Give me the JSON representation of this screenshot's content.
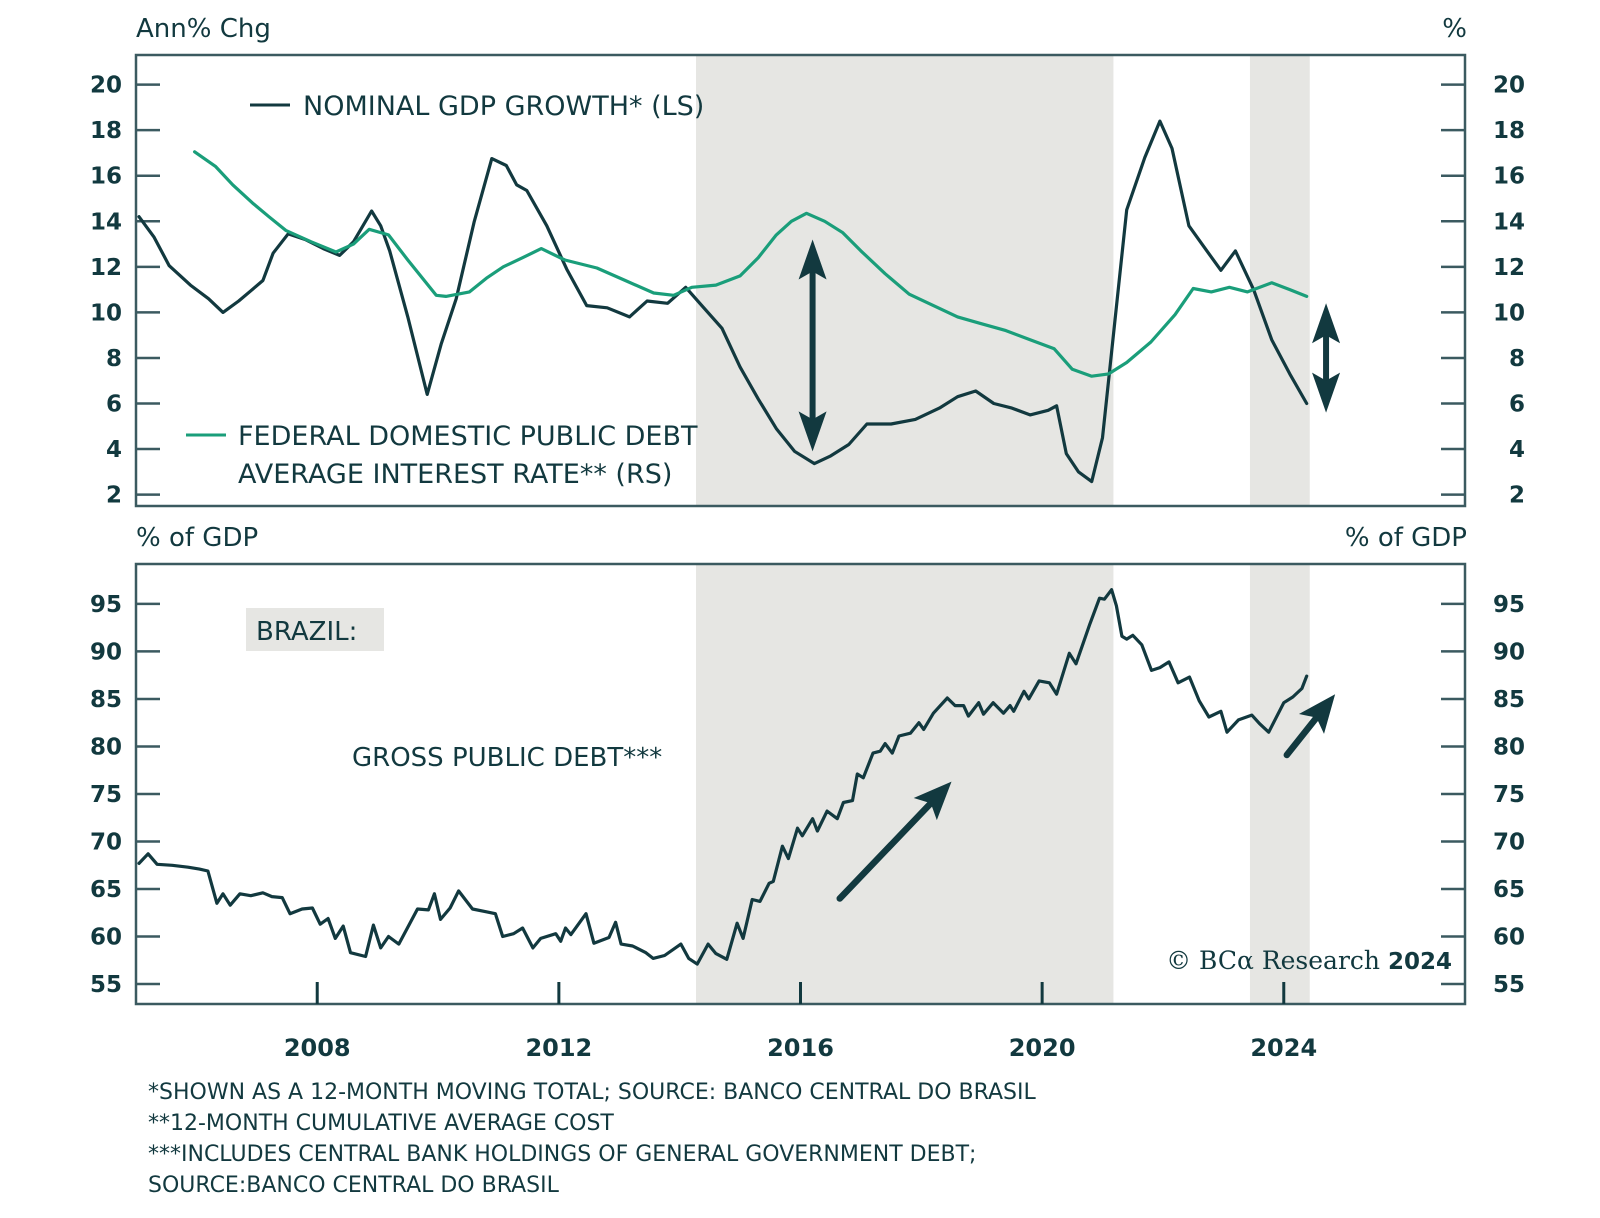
{
  "chart_data": [
    {
      "type": "line",
      "panel": "top",
      "title": "",
      "left_axis_label": "Ann% Chg",
      "right_axis_label": "%",
      "xlim": [
        2005.0,
        2027.0
      ],
      "ylim": [
        1.5,
        21.3
      ],
      "left_ticks": [
        2,
        4,
        6,
        8,
        10,
        12,
        14,
        16,
        18,
        20
      ],
      "right_ticks": [
        2,
        4,
        6,
        8,
        10,
        12,
        14,
        16,
        18,
        20
      ],
      "grid": false,
      "colors": {
        "nominal_gdp": "#12393f",
        "debt_rate": "#1a9e7a",
        "shade": "#e6e6e3",
        "frame": "#3b5a60"
      },
      "legend": [
        {
          "name": "NOMINAL GDP GROWTH* (LS)",
          "series": "nominal_gdp"
        },
        {
          "name": "FEDERAL DOMESTIC PUBLIC DEBT AVERAGE INTEREST RATE** (RS)",
          "series": "debt_rate",
          "lines": [
            "FEDERAL DOMESTIC PUBLIC DEBT",
            "AVERAGE INTEREST RATE** (RS)"
          ]
        }
      ],
      "shaded_periods": [
        [
          2014.27,
          2021.18
        ],
        [
          2023.44,
          2024.43
        ]
      ],
      "annotations": [
        {
          "type": "double-arrow",
          "x": 2016.2,
          "y_from": 13.2,
          "y_to": 3.9
        },
        {
          "type": "double-arrow",
          "x": 2024.7,
          "y_from": 10.4,
          "y_to": 5.6
        }
      ],
      "series": [
        {
          "name": "NOMINAL GDP GROWTH* (LS)",
          "axis": "left",
          "x": [
            2005.05,
            2005.3,
            2005.55,
            2005.9,
            2006.2,
            2006.44,
            2006.7,
            2006.9,
            2007.1,
            2007.27,
            2007.52,
            2007.8,
            2008.1,
            2008.37,
            2008.6,
            2008.9,
            2009.05,
            2009.2,
            2009.5,
            2009.82,
            2010.05,
            2010.3,
            2010.6,
            2010.89,
            2011.13,
            2011.3,
            2011.47,
            2011.8,
            2012.13,
            2012.46,
            2012.8,
            2013.17,
            2013.46,
            2013.8,
            2014.1,
            2014.4,
            2014.7,
            2015.0,
            2015.3,
            2015.6,
            2015.9,
            2016.23,
            2016.5,
            2016.8,
            2017.1,
            2017.5,
            2017.9,
            2018.3,
            2018.6,
            2018.9,
            2019.2,
            2019.5,
            2019.8,
            2020.1,
            2020.24,
            2020.4,
            2020.6,
            2020.82,
            2021.0,
            2021.2,
            2021.4,
            2021.7,
            2021.95,
            2022.15,
            2022.43,
            2022.7,
            2022.96,
            2023.2,
            2023.5,
            2023.8,
            2024.1,
            2024.38
          ],
          "values": [
            14.2,
            13.3,
            12.05,
            11.2,
            10.6,
            10.0,
            10.5,
            10.95,
            11.4,
            12.6,
            13.45,
            13.2,
            12.8,
            12.5,
            13.1,
            14.45,
            13.8,
            12.7,
            9.8,
            6.4,
            8.6,
            10.6,
            14.0,
            16.75,
            16.45,
            15.6,
            15.35,
            13.8,
            11.9,
            10.3,
            10.2,
            9.8,
            10.5,
            10.4,
            11.1,
            10.2,
            9.3,
            7.6,
            6.2,
            4.9,
            3.9,
            3.36,
            3.7,
            4.2,
            5.1,
            5.1,
            5.3,
            5.8,
            6.3,
            6.55,
            6.0,
            5.8,
            5.5,
            5.7,
            5.9,
            3.8,
            3.0,
            2.57,
            4.5,
            9.5,
            14.5,
            16.8,
            18.4,
            17.2,
            13.8,
            12.8,
            11.85,
            12.7,
            11.0,
            8.8,
            7.3,
            6.0
          ]
        },
        {
          "name": "FEDERAL DOMESTIC PUBLIC DEBT AVERAGE INTEREST RATE** (RS)",
          "axis": "right",
          "x": [
            2005.97,
            2006.32,
            2006.6,
            2006.93,
            2007.2,
            2007.48,
            2007.9,
            2008.31,
            2008.6,
            2008.86,
            2009.18,
            2009.5,
            2009.97,
            2010.13,
            2010.52,
            2010.8,
            2011.08,
            2011.4,
            2011.71,
            2012.1,
            2012.63,
            2013.1,
            2013.57,
            2013.9,
            2014.2,
            2014.6,
            2015.0,
            2015.3,
            2015.6,
            2015.85,
            2016.1,
            2016.4,
            2016.7,
            2017.0,
            2017.4,
            2017.8,
            2018.2,
            2018.6,
            2019.0,
            2019.4,
            2019.8,
            2020.2,
            2020.5,
            2020.82,
            2021.1,
            2021.4,
            2021.8,
            2022.2,
            2022.5,
            2022.8,
            2023.1,
            2023.4,
            2023.8,
            2024.1,
            2024.38
          ],
          "values": [
            17.05,
            16.4,
            15.6,
            14.8,
            14.2,
            13.6,
            13.1,
            12.65,
            13.0,
            13.65,
            13.4,
            12.3,
            10.75,
            10.7,
            10.9,
            11.5,
            12.0,
            12.4,
            12.8,
            12.3,
            11.95,
            11.4,
            10.85,
            10.75,
            11.1,
            11.2,
            11.6,
            12.4,
            13.4,
            14.0,
            14.35,
            14.0,
            13.5,
            12.7,
            11.7,
            10.8,
            10.3,
            9.8,
            9.5,
            9.2,
            8.8,
            8.4,
            7.5,
            7.2,
            7.3,
            7.8,
            8.7,
            9.9,
            11.05,
            10.9,
            11.1,
            10.9,
            11.3,
            11.0,
            10.7
          ]
        }
      ]
    },
    {
      "type": "line",
      "panel": "bottom",
      "title": "",
      "left_axis_label": "% of GDP",
      "right_axis_label": "% of GDP",
      "xlim": [
        2005.0,
        2027.0
      ],
      "ylim": [
        52.9,
        99.2
      ],
      "left_ticks": [
        55,
        60,
        65,
        70,
        75,
        80,
        85,
        90,
        95
      ],
      "right_ticks": [
        55,
        60,
        65,
        70,
        75,
        80,
        85,
        90,
        95
      ],
      "x_ticks": [
        2008,
        2012,
        2016,
        2020,
        2024
      ],
      "x_tick_labels": [
        "2008",
        "2012",
        "2016",
        "2020",
        "2024"
      ],
      "grid": false,
      "shaded_periods": [
        [
          2014.27,
          2021.18
        ],
        [
          2023.44,
          2024.43
        ]
      ],
      "panel_label": "BRAZIL:",
      "series_label": "GROSS PUBLIC DEBT***",
      "annotations": [
        {
          "type": "arrow-up-right",
          "from": [
            2016.65,
            64.0
          ],
          "to": [
            2018.5,
            76.3
          ]
        },
        {
          "type": "arrow-up-right",
          "from": [
            2024.05,
            79.1
          ],
          "to": [
            2024.85,
            85.5
          ]
        }
      ],
      "series": [
        {
          "name": "GROSS PUBLIC DEBT***",
          "axis": "left",
          "x": [
            2005.05,
            2005.2,
            2005.35,
            2005.6,
            2005.86,
            2006.05,
            2006.19,
            2006.34,
            2006.44,
            2006.56,
            2006.72,
            2006.9,
            2007.1,
            2007.25,
            2007.42,
            2007.55,
            2007.75,
            2007.92,
            2008.05,
            2008.18,
            2008.3,
            2008.43,
            2008.55,
            2008.8,
            2008.93,
            2009.05,
            2009.18,
            2009.35,
            2009.51,
            2009.66,
            2009.84,
            2009.94,
            2010.04,
            2010.2,
            2010.34,
            2010.57,
            2010.8,
            2010.95,
            2011.07,
            2011.25,
            2011.4,
            2011.57,
            2011.7,
            2011.95,
            2012.03,
            2012.11,
            2012.2,
            2012.45,
            2012.58,
            2012.83,
            2012.94,
            2013.03,
            2013.22,
            2013.44,
            2013.56,
            2013.75,
            2014.02,
            2014.15,
            2014.29,
            2014.47,
            2014.6,
            2014.78,
            2014.95,
            2015.05,
            2015.2,
            2015.33,
            2015.48,
            2015.55,
            2015.7,
            2015.8,
            2015.95,
            2016.03,
            2016.2,
            2016.28,
            2016.44,
            2016.61,
            2016.71,
            2016.86,
            2016.94,
            2017.04,
            2017.2,
            2017.32,
            2017.4,
            2017.52,
            2017.63,
            2017.82,
            2017.96,
            2018.04,
            2018.2,
            2018.43,
            2018.56,
            2018.7,
            2018.78,
            2018.95,
            2019.03,
            2019.19,
            2019.36,
            2019.47,
            2019.53,
            2019.7,
            2019.78,
            2019.95,
            2020.12,
            2020.24,
            2020.45,
            2020.56,
            2020.79,
            2020.95,
            2021.03,
            2021.15,
            2021.23,
            2021.32,
            2021.4,
            2021.5,
            2021.65,
            2021.81,
            2021.95,
            2022.1,
            2022.25,
            2022.44,
            2022.6,
            2022.76,
            2022.96,
            2023.06,
            2023.25,
            2023.47,
            2023.6,
            2023.75,
            2024.0,
            2024.15,
            2024.3,
            2024.38
          ],
          "values": [
            67.7,
            68.7,
            67.6,
            67.5,
            67.3,
            67.1,
            66.9,
            63.5,
            64.5,
            63.3,
            64.5,
            64.3,
            64.6,
            64.2,
            64.1,
            62.4,
            62.9,
            63.0,
            61.3,
            61.9,
            59.8,
            61.1,
            58.3,
            57.9,
            61.2,
            58.8,
            60.0,
            59.2,
            61.1,
            62.9,
            62.8,
            64.5,
            61.8,
            63.0,
            64.8,
            62.9,
            62.6,
            62.4,
            60.0,
            60.3,
            60.9,
            58.8,
            59.8,
            60.3,
            59.5,
            60.9,
            60.2,
            62.4,
            59.3,
            59.9,
            61.5,
            59.2,
            59.0,
            58.3,
            57.7,
            58.0,
            59.2,
            57.7,
            57.1,
            59.2,
            58.2,
            57.6,
            61.4,
            59.8,
            63.9,
            63.7,
            65.6,
            65.8,
            69.5,
            68.2,
            71.4,
            70.6,
            72.4,
            71.1,
            73.2,
            72.4,
            74.1,
            74.3,
            77.1,
            76.7,
            79.3,
            79.5,
            80.3,
            79.3,
            81.1,
            81.4,
            82.5,
            81.8,
            83.5,
            85.1,
            84.3,
            84.3,
            83.2,
            84.6,
            83.4,
            84.6,
            83.5,
            84.3,
            83.7,
            85.8,
            85.0,
            86.9,
            86.7,
            85.5,
            89.8,
            88.7,
            92.9,
            95.6,
            95.5,
            96.5,
            94.8,
            91.6,
            91.3,
            91.7,
            90.7,
            88.0,
            88.3,
            88.9,
            86.7,
            87.3,
            84.8,
            83.1,
            83.7,
            81.5,
            82.8,
            83.3,
            82.4,
            81.5,
            84.6,
            85.2,
            86.1,
            87.4
          ]
        }
      ]
    }
  ],
  "footnotes": [
    "*SHOWN AS A 12-MONTH MOVING TOTAL; SOURCE: BANCO CENTRAL DO BRASIL",
    "**12-MONTH CUMULATIVE AVERAGE COST",
    "***INCLUDES CENTRAL BANK HOLDINGS OF GENERAL GOVERNMENT DEBT;",
    "SOURCE:BANCO CENTRAL DO BRASIL"
  ],
  "copyright": {
    "prefix": "© BCα Research",
    "year": "2024"
  }
}
